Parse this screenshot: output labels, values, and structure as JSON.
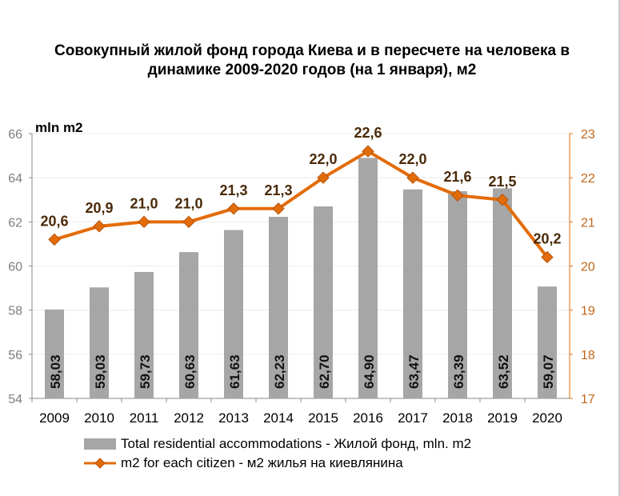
{
  "chart_data": {
    "type": "bar+line",
    "title": "Совокупный жилой фонд города Киева и в пересчете на человека в динамике 2009-2020 годов (на 1 января), м2",
    "ylabel_left": "mln m2",
    "categories": [
      "2009",
      "2010",
      "2011",
      "2012",
      "2013",
      "2014",
      "2015",
      "2016",
      "2017",
      "2018",
      "2019",
      "2020"
    ],
    "series": [
      {
        "name": "Total residential accommodations - Жилой фонд, mln. m2",
        "type": "bar",
        "axis": "left",
        "color": "#a6a6a6",
        "values": [
          58.03,
          59.03,
          59.73,
          60.63,
          61.63,
          62.23,
          62.7,
          64.9,
          63.47,
          63.39,
          63.52,
          59.07
        ],
        "labels": [
          "58,03",
          "59,03",
          "59,73",
          "60,63",
          "61,63",
          "62,23",
          "62,70",
          "64,90",
          "63,47",
          "63,39",
          "63,52",
          "59,07"
        ]
      },
      {
        "name": "m2 for each citizen - м2 жилья на киевлянина",
        "type": "line",
        "axis": "right",
        "color": "#e36c0a",
        "values": [
          20.6,
          20.9,
          21.0,
          21.0,
          21.3,
          21.3,
          22.0,
          22.6,
          22.0,
          21.6,
          21.5,
          20.2
        ],
        "labels": [
          "20,6",
          "20,9",
          "21,0",
          "21,0",
          "21,3",
          "21,3",
          "22,0",
          "22,6",
          "22,0",
          "21,6",
          "21,5",
          "20,2"
        ]
      }
    ],
    "y_left": {
      "min": 54,
      "max": 66,
      "ticks": [
        "54",
        "56",
        "58",
        "60",
        "62",
        "64",
        "66"
      ]
    },
    "y_right": {
      "min": 17,
      "max": 23,
      "ticks": [
        "17",
        "18",
        "19",
        "20",
        "21",
        "22",
        "23"
      ]
    },
    "grid": true,
    "legend_position": "bottom"
  }
}
